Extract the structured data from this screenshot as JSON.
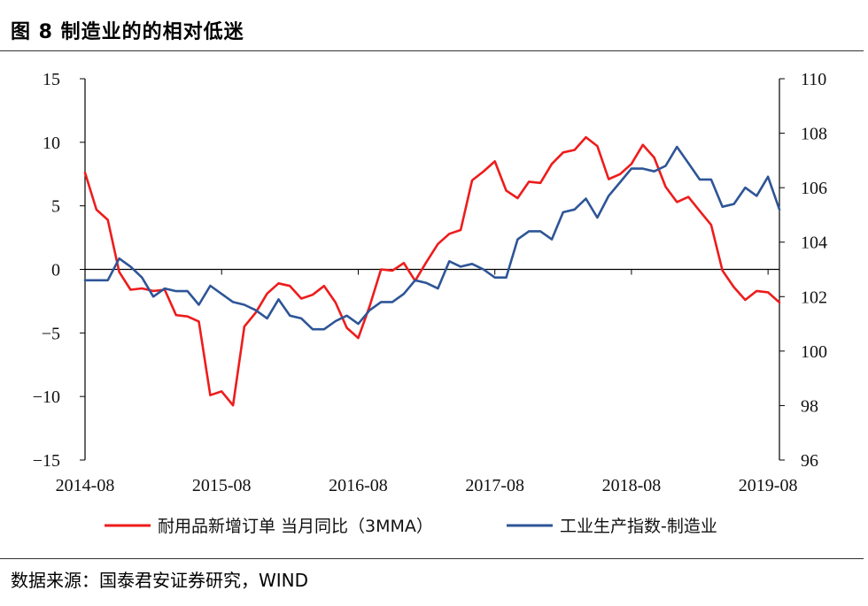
{
  "header": {
    "title": "图 8 制造业的的相对低迷"
  },
  "footer": {
    "source": "数据来源：国泰君安证券研究，WIND"
  },
  "colors": {
    "series1": "#ee1c1c",
    "series2": "#2e5597",
    "axis": "#000000"
  },
  "chart_data": {
    "type": "line",
    "legend_position": "bottom",
    "grid": false,
    "x_tick_labels": [
      "2014-08",
      "2015-08",
      "2016-08",
      "2017-08",
      "2018-08",
      "2019-08"
    ],
    "x_range": [
      0,
      61
    ],
    "y_left": {
      "ylim": [
        -15,
        15
      ],
      "ticks": [
        15,
        10,
        5,
        0,
        -5,
        -10,
        -15
      ],
      "tick_labels": [
        "15",
        "10",
        "5",
        "0",
        "−5",
        "−10",
        "−15"
      ]
    },
    "y_right": {
      "ylim": [
        96,
        110
      ],
      "ticks": [
        110,
        108,
        106,
        104,
        102,
        100,
        98,
        96
      ],
      "tick_labels": [
        "110",
        "108",
        "106",
        "104",
        "102",
        "100",
        "98",
        "96"
      ]
    },
    "series": [
      {
        "name": "耐用品新增订单 当月同比（3MMA）",
        "axis": "left",
        "x": [
          0,
          1,
          2,
          3,
          4,
          5,
          6,
          7,
          8,
          9,
          10,
          11,
          12,
          13,
          14,
          15,
          16,
          17,
          18,
          19,
          20,
          21,
          22,
          23,
          24,
          25,
          26,
          27,
          28,
          29,
          30,
          31,
          32,
          33,
          34,
          35,
          36,
          37,
          38,
          39,
          40,
          41,
          42,
          43,
          44,
          45,
          46,
          47,
          48,
          49,
          50,
          51,
          52,
          53,
          54,
          55,
          56,
          57,
          58,
          59,
          60,
          61
        ],
        "values": [
          7.6,
          4.7,
          3.9,
          -0.2,
          -1.6,
          -1.5,
          -1.7,
          -1.6,
          -3.6,
          -3.7,
          -4.1,
          -9.9,
          -9.6,
          -10.7,
          -4.5,
          -3.4,
          -1.9,
          -1.1,
          -1.3,
          -2.3,
          -2.0,
          -1.3,
          -2.6,
          -4.6,
          -5.4,
          -2.9,
          0.0,
          -0.1,
          0.5,
          -0.9,
          0.6,
          2.0,
          2.8,
          3.1,
          7.0,
          7.7,
          8.5,
          6.2,
          5.6,
          6.9,
          6.8,
          8.3,
          9.2,
          9.4,
          10.4,
          9.7,
          7.1,
          7.5,
          8.3,
          9.8,
          8.8,
          6.5,
          5.3,
          5.7,
          4.6,
          3.5,
          -0.1,
          -1.4,
          -2.4,
          -1.7,
          -1.8,
          -2.6
        ]
      },
      {
        "name": "工业生产指数-制造业",
        "axis": "right",
        "x": [
          0,
          1,
          2,
          3,
          4,
          5,
          6,
          7,
          8,
          9,
          10,
          11,
          12,
          13,
          14,
          15,
          16,
          17,
          18,
          19,
          20,
          21,
          22,
          23,
          24,
          25,
          26,
          27,
          28,
          29,
          30,
          31,
          32,
          33,
          34,
          35,
          36,
          37,
          38,
          39,
          40,
          41,
          42,
          43,
          44,
          45,
          46,
          47,
          48,
          49,
          50,
          51,
          52,
          53,
          54,
          55,
          56,
          57,
          58,
          59,
          60,
          61
        ],
        "values": [
          102.6,
          102.6,
          102.6,
          103.4,
          103.1,
          102.7,
          102.0,
          102.3,
          102.2,
          102.2,
          101.7,
          102.4,
          102.1,
          101.8,
          101.7,
          101.5,
          101.2,
          101.9,
          101.3,
          101.2,
          100.8,
          100.8,
          101.1,
          101.3,
          101.0,
          101.5,
          101.8,
          101.8,
          102.1,
          102.6,
          102.5,
          102.3,
          103.3,
          103.1,
          103.2,
          103.0,
          102.7,
          102.7,
          104.1,
          104.4,
          104.4,
          104.1,
          105.1,
          105.2,
          105.6,
          104.9,
          105.7,
          106.2,
          106.7,
          106.7,
          106.6,
          106.8,
          107.5,
          106.9,
          106.3,
          106.3,
          105.3,
          105.4,
          106.0,
          105.7,
          106.4,
          105.2
        ]
      }
    ]
  }
}
